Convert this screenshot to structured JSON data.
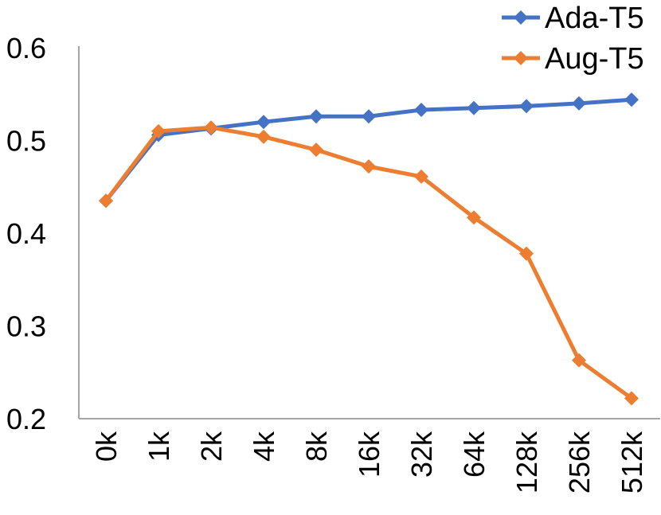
{
  "chart_data": {
    "type": "line",
    "categories": [
      "0k",
      "1k",
      "2k",
      "4k",
      "8k",
      "16k",
      "32k",
      "64k",
      "128k",
      "256k",
      "512k"
    ],
    "series": [
      {
        "name": "Ada-T5",
        "color": "#4472C4",
        "values": [
          0.435,
          0.506,
          0.513,
          0.52,
          0.526,
          0.526,
          0.533,
          0.535,
          0.537,
          0.54,
          0.544
        ]
      },
      {
        "name": "Aug-T5",
        "color": "#ED7D31",
        "values": [
          0.435,
          0.51,
          0.514,
          0.504,
          0.49,
          0.472,
          0.461,
          0.417,
          0.378,
          0.263,
          0.222
        ]
      }
    ],
    "title": "",
    "xlabel": "",
    "ylabel": "",
    "ylim": [
      0.2,
      0.6
    ],
    "yticks": [
      0.2,
      0.3,
      0.4,
      0.5,
      0.6
    ],
    "ytick_format_decimals": 1,
    "grid": false,
    "marker": "diamond",
    "legend_position": "top-right",
    "axis_color": "#A6A6A6",
    "text_color": "#000000",
    "background_color": "#FFFFFF"
  }
}
